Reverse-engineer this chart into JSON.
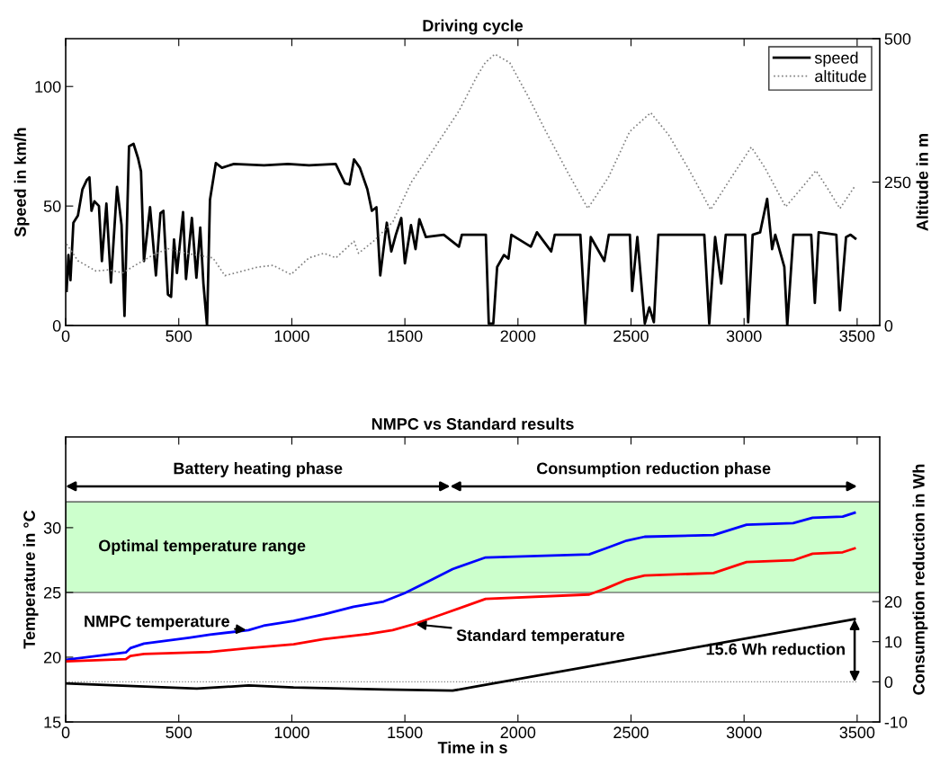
{
  "chart_data": [
    {
      "type": "line",
      "title": "Driving cycle",
      "ylabel": "Speed in km/h",
      "y2label": "Altitude in m",
      "xlim": [
        0,
        3600
      ],
      "xticks": [
        0,
        500,
        1000,
        1500,
        2000,
        2500,
        3000,
        3500
      ],
      "ylim": [
        0,
        120
      ],
      "yticks": [
        0,
        50,
        100
      ],
      "y2lim": [
        0,
        500
      ],
      "y2ticks": [
        0,
        250,
        500
      ],
      "grid": false,
      "legend": "top right",
      "series": [
        {
          "name": "speed",
          "color": "#000000",
          "line_style": "solid",
          "x": [
            4,
            12,
            21,
            34,
            54,
            74,
            94,
            105,
            114,
            127,
            147,
            160,
            180,
            200,
            227,
            247,
            260,
            280,
            300,
            320,
            333,
            346,
            373,
            399,
            419,
            432,
            452,
            466,
            479,
            492,
            519,
            532,
            558,
            578,
            595,
            609,
            625,
            638,
            664,
            691,
            744,
            877,
            983,
            1076,
            1194,
            1235,
            1255,
            1275,
            1301,
            1334,
            1354,
            1374,
            1391,
            1420,
            1440,
            1460,
            1484,
            1500,
            1527,
            1547,
            1564,
            1593,
            1672,
            1739,
            1752,
            1858,
            1871,
            1891,
            1908,
            1938,
            1958,
            1971,
            2057,
            2084,
            2147,
            2163,
            2276,
            2298,
            2322,
            2382,
            2402,
            2495,
            2505,
            2528,
            2561,
            2581,
            2601,
            2621,
            2824,
            2846,
            2872,
            2899,
            2919,
            3005,
            3018,
            3038,
            3071,
            3102,
            3124,
            3138,
            3178,
            3191,
            3218,
            3297,
            3313,
            3330,
            3408,
            3424,
            3451,
            3471,
            3492
          ],
          "values": [
            14.5,
            29.5,
            19,
            43,
            46,
            57,
            61,
            62,
            48,
            52,
            50,
            27,
            51,
            18,
            58,
            42,
            4,
            75,
            76,
            70,
            64.5,
            27,
            49.5,
            21,
            47,
            48,
            13,
            12,
            36,
            22,
            47.5,
            19.5,
            45,
            20,
            41,
            17.6,
            0,
            52.6,
            68,
            66,
            67.6,
            67,
            67.6,
            67,
            67.6,
            59.5,
            59,
            69.5,
            66,
            57,
            48,
            49.5,
            21,
            43,
            31,
            38,
            45,
            26,
            42,
            32,
            44.5,
            37,
            38,
            33,
            38,
            38,
            0.8,
            0.8,
            24.5,
            29.5,
            28,
            38,
            33,
            39,
            31,
            38,
            38,
            0.8,
            37,
            27,
            38,
            38,
            14.5,
            37,
            0.8,
            7.6,
            1.4,
            38,
            38,
            0.8,
            37,
            17.6,
            38,
            38,
            1.4,
            38,
            39,
            53,
            32,
            38,
            24.5,
            0,
            38,
            38,
            9.5,
            39,
            38,
            6.4,
            37,
            38,
            36.4
          ]
        },
        {
          "name": "altitude",
          "color": "#808080",
          "line_style": "dotted",
          "axis": "y2",
          "x": [
            4,
            54,
            134,
            187,
            253,
            320,
            386,
            452,
            532,
            651,
            704,
            850,
            917,
            996,
            1076,
            1142,
            1195,
            1275,
            1295,
            1367,
            1447,
            1527,
            1633,
            1739,
            1818,
            1855,
            1898,
            1964,
            2044,
            2124,
            2216,
            2309,
            2401,
            2494,
            2587,
            2667,
            2759,
            2852,
            2945,
            3032,
            3092,
            3184,
            3251,
            3318,
            3371,
            3424,
            3490
          ],
          "values": [
            142,
            113,
            95,
            97,
            92,
            108,
            123,
            134,
            126,
            118,
            87,
            102,
            105,
            89,
            118,
            126,
            118,
            147,
            126,
            149,
            181,
            249,
            311,
            374,
            434,
            458,
            473,
            458,
            400,
            338,
            270,
            204,
            259,
            338,
            371,
            332,
            270,
            202,
            259,
            311,
            275,
            207,
            238,
            270,
            238,
            204,
            243
          ]
        }
      ]
    },
    {
      "type": "line",
      "title": "NMPC vs Standard results",
      "xlabel": "Time in s",
      "ylabel": "Temperature in °C",
      "y2label": "Consumption reduction in Wh",
      "xlim": [
        0,
        3600
      ],
      "xticks": [
        0,
        500,
        1000,
        1500,
        2000,
        2500,
        3000,
        3500
      ],
      "ylim": [
        15,
        37
      ],
      "yticks": [
        15,
        20,
        25,
        30
      ],
      "y2lim": [
        -10,
        61
      ],
      "y2ticks": [
        -10,
        0,
        10,
        20
      ],
      "grid": false,
      "legend": false,
      "bands": [
        {
          "axis": "y",
          "from": 25,
          "to": 32,
          "label": "Optimal temperature range",
          "color": "#ccffcc"
        }
      ],
      "ref_lines": [
        {
          "axis": "y2",
          "value": 0,
          "color": "#808080",
          "line_style": "dotted"
        }
      ],
      "annotations": [
        "Battery heating phase",
        "Consumption reduction phase",
        "15.6 Wh reduction"
      ],
      "series": [
        {
          "name": "NMPC temperature",
          "color": "#0000ff",
          "x": [
            0,
            266,
            286,
            346,
            545,
            638,
            809,
            875,
            1008,
            1141,
            1273,
            1406,
            1499,
            1605,
            1711,
            1857,
            2315,
            2388,
            2481,
            2560,
            2865,
            3011,
            3217,
            3303,
            3436,
            3489
          ],
          "values": [
            19.8,
            20.37,
            20.7,
            21.05,
            21.5,
            21.74,
            22.09,
            22.43,
            22.8,
            23.3,
            23.9,
            24.3,
            24.95,
            25.87,
            26.8,
            27.7,
            27.94,
            28.4,
            29.0,
            29.3,
            29.43,
            30.23,
            30.35,
            30.76,
            30.85,
            31.15
          ]
        },
        {
          "name": "Standard temperature",
          "color": "#ff0000",
          "x": [
            0,
            266,
            286,
            346,
            638,
            809,
            1008,
            1141,
            1340,
            1446,
            1539,
            1671,
            1857,
            2315,
            2388,
            2481,
            2560,
            2865,
            3011,
            3217,
            3303,
            3436,
            3489
          ],
          "values": [
            19.68,
            19.85,
            20.1,
            20.25,
            20.4,
            20.7,
            21.0,
            21.4,
            21.8,
            22.09,
            22.55,
            23.35,
            24.5,
            24.84,
            25.3,
            25.98,
            26.3,
            26.5,
            27.35,
            27.48,
            27.99,
            28.1,
            28.4
          ]
        },
        {
          "color": "#000000",
          "axis": "y2",
          "x": [
            0,
            580,
            809,
            1008,
            1406,
            1711,
            3489
          ],
          "values": [
            -0.4,
            -1.7,
            -0.9,
            -1.4,
            -1.9,
            -2.2,
            15.6
          ]
        }
      ]
    }
  ]
}
